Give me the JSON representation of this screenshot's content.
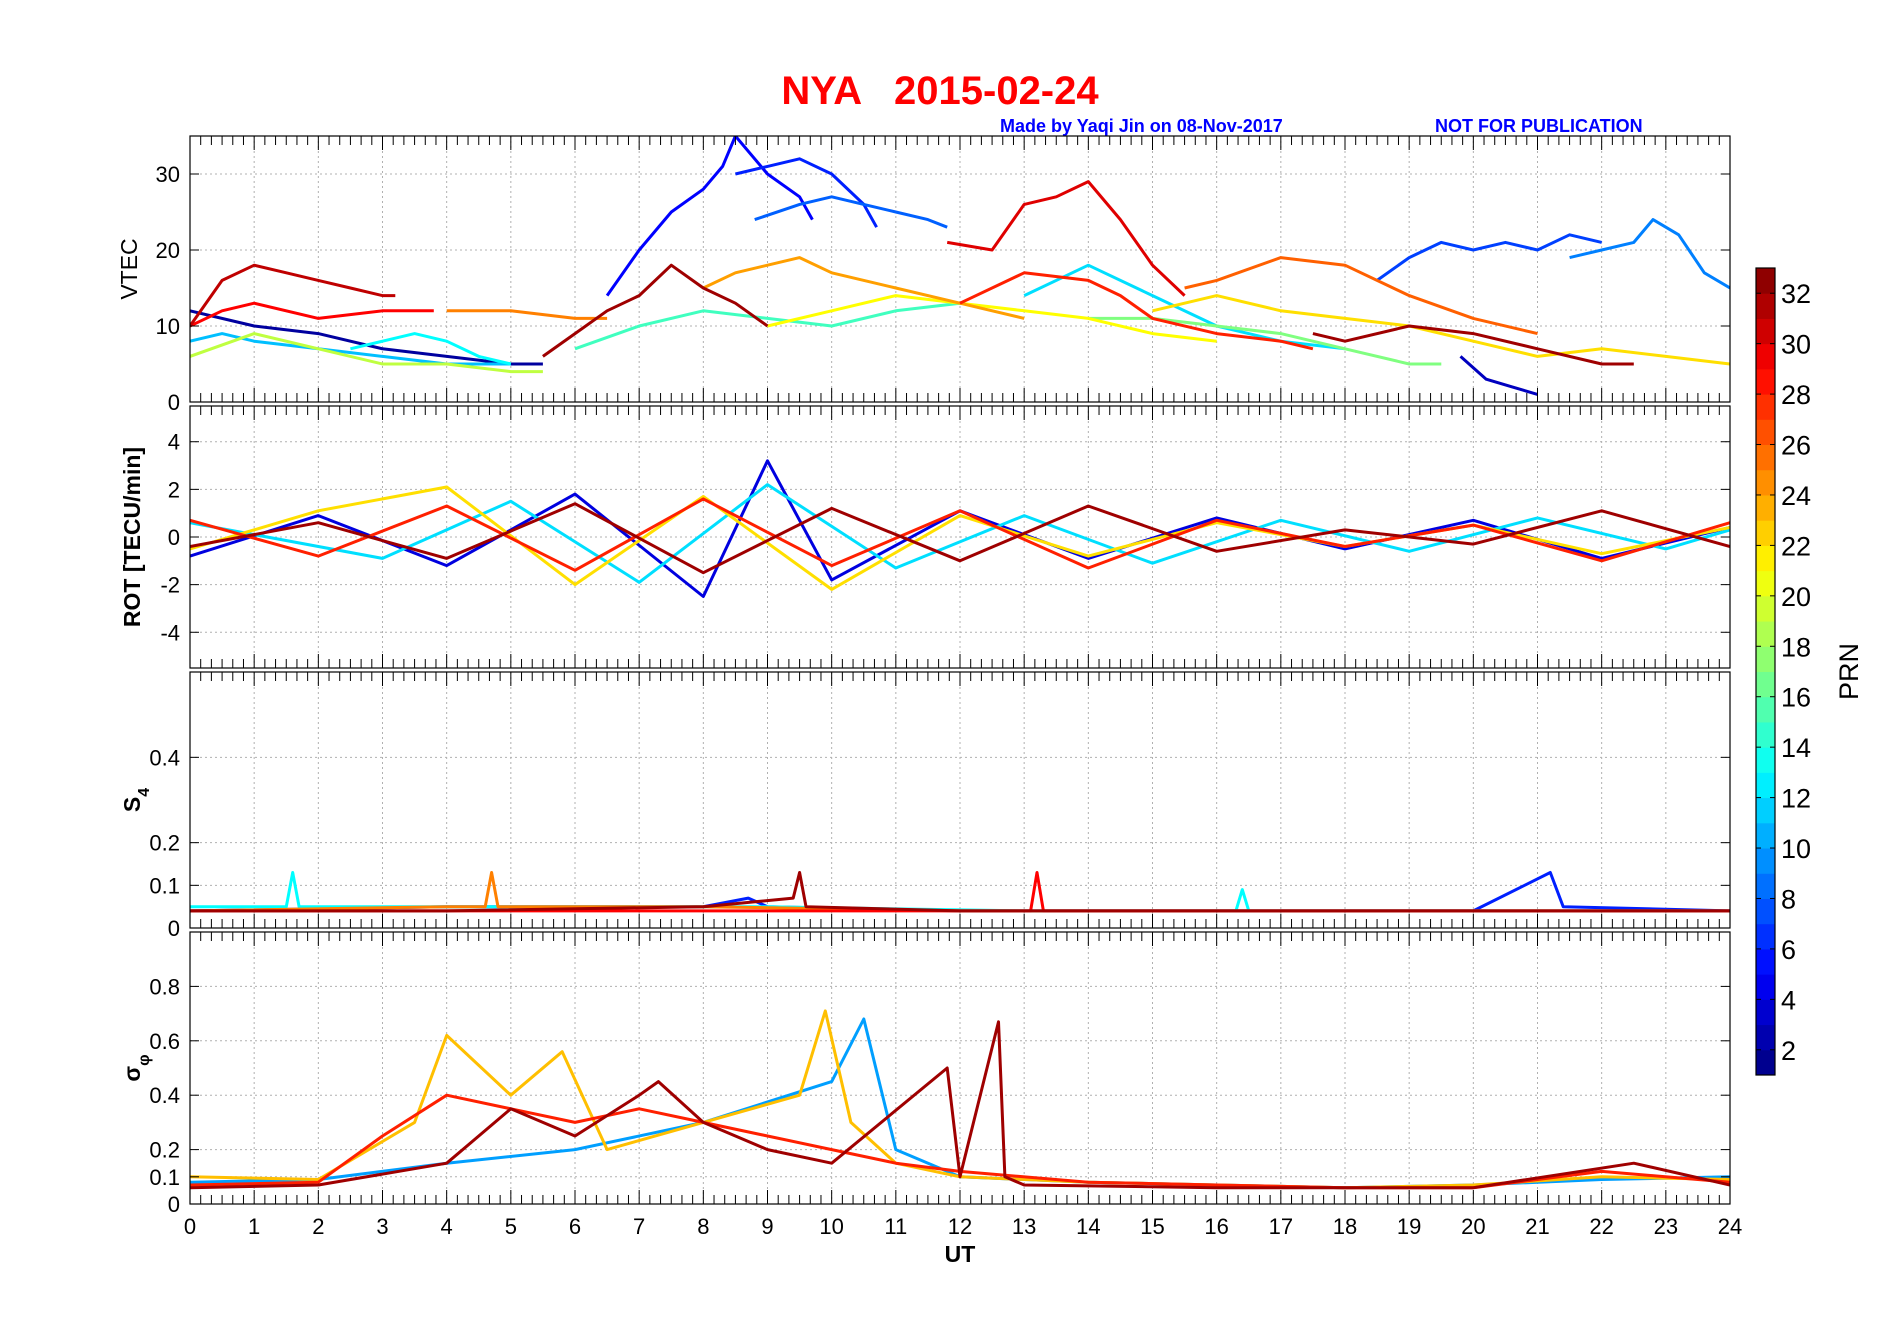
{
  "title": "NYA   2015-02-24",
  "credit_left": "Made by Yaqi Jin on 08-Nov-2017",
  "credit_right": "NOT FOR PUBLICATION",
  "colors": {
    "title": "#ff0000",
    "credit": "#0000ff",
    "grid": "#b0b0b0"
  },
  "chart_data": [
    {
      "type": "line",
      "id": "vtec",
      "ylabel": "VTEC",
      "ylim": [
        0,
        35
      ],
      "yticks": [
        0,
        10,
        20,
        30
      ],
      "grid": true,
      "series": [
        {
          "prn": 2,
          "x": [
            0,
            1,
            2,
            3,
            4,
            5,
            5.5
          ],
          "y": [
            12,
            10,
            9,
            7,
            6,
            5,
            5
          ]
        },
        {
          "prn": 3,
          "x": [
            19.8,
            20.2,
            20.6,
            21.0
          ],
          "y": [
            6,
            3,
            2,
            1
          ]
        },
        {
          "prn": 5,
          "x": [
            6.5,
            7.0,
            7.5,
            8.0,
            8.3,
            8.5,
            9.0,
            9.5,
            9.7
          ],
          "y": [
            14,
            20,
            25,
            28,
            31,
            35,
            30,
            27,
            24
          ]
        },
        {
          "prn": 6,
          "x": [
            8.5,
            9.0,
            9.5,
            10.0,
            10.5,
            10.7
          ],
          "y": [
            30,
            31,
            32,
            30,
            26,
            23
          ]
        },
        {
          "prn": 7,
          "x": [
            18.5,
            19,
            19.5,
            20,
            20.5,
            21,
            21.5,
            22
          ],
          "y": [
            16,
            19,
            21,
            20,
            21,
            20,
            22,
            21
          ]
        },
        {
          "prn": 8,
          "x": [
            8.8,
            9.5,
            10,
            10.5,
            11,
            11.5,
            11.8
          ],
          "y": [
            24,
            26,
            27,
            26,
            25,
            24,
            23
          ]
        },
        {
          "prn": 9,
          "x": [
            21.5,
            22.0,
            22.5,
            22.8,
            23.2,
            23.6,
            24.0
          ],
          "y": [
            19,
            20,
            21,
            24,
            22,
            17,
            15
          ]
        },
        {
          "prn": 11,
          "x": [
            0,
            0.5,
            1,
            2,
            3,
            4,
            5
          ],
          "y": [
            8,
            9,
            8,
            7,
            6,
            5,
            5
          ]
        },
        {
          "prn": 12,
          "x": [
            13,
            14,
            15,
            16,
            17,
            18
          ],
          "y": [
            14,
            18,
            14,
            10,
            8,
            7
          ]
        },
        {
          "prn": 13,
          "x": [
            2.5,
            3,
            3.5,
            4,
            4.5,
            5
          ],
          "y": [
            7,
            8,
            9,
            8,
            6,
            5
          ]
        },
        {
          "prn": 15,
          "x": [
            6,
            7,
            8,
            9,
            10,
            11,
            12
          ],
          "y": [
            7,
            10,
            12,
            11,
            10,
            12,
            13
          ]
        },
        {
          "prn": 17,
          "x": [
            14,
            15,
            16,
            17,
            18,
            19,
            19.5
          ],
          "y": [
            11,
            11,
            10,
            9,
            7,
            5,
            5
          ]
        },
        {
          "prn": 19,
          "x": [
            0,
            1,
            2,
            3,
            4,
            5,
            5.5
          ],
          "y": [
            6,
            9,
            7,
            5,
            5,
            4,
            4
          ]
        },
        {
          "prn": 21,
          "x": [
            9,
            10,
            11,
            12,
            13,
            14,
            15,
            16
          ],
          "y": [
            10,
            12,
            14,
            13,
            12,
            11,
            9,
            8
          ]
        },
        {
          "prn": 22,
          "x": [
            15,
            16,
            17,
            18,
            19,
            20,
            21,
            22,
            23,
            24
          ],
          "y": [
            12,
            14,
            12,
            11,
            10,
            8,
            6,
            7,
            6,
            5
          ]
        },
        {
          "prn": 24,
          "x": [
            8,
            8.5,
            9,
            9.5,
            10,
            11,
            12,
            13
          ],
          "y": [
            15,
            17,
            18,
            19,
            17,
            15,
            13,
            11
          ]
        },
        {
          "prn": 25,
          "x": [
            4,
            5,
            6,
            6.5
          ],
          "y": [
            12,
            12,
            11,
            11
          ]
        },
        {
          "prn": 26,
          "x": [
            15.5,
            16,
            17,
            18,
            19,
            20,
            21
          ],
          "y": [
            15,
            16,
            19,
            18,
            14,
            11,
            9
          ]
        },
        {
          "prn": 28,
          "x": [
            12,
            13,
            14,
            14.5,
            15,
            16,
            17,
            17.5
          ],
          "y": [
            13,
            17,
            16,
            14,
            11,
            9,
            8,
            7
          ]
        },
        {
          "prn": 29,
          "x": [
            0,
            0.5,
            1,
            2,
            3,
            3.8
          ],
          "y": [
            10,
            12,
            13,
            11,
            12,
            12
          ]
        },
        {
          "prn": 30,
          "x": [
            11.8,
            12.5,
            13,
            13.5,
            14,
            14.5,
            15,
            15.5
          ],
          "y": [
            21,
            20,
            26,
            27,
            29,
            24,
            18,
            14
          ]
        },
        {
          "prn": 31,
          "x": [
            0,
            0.5,
            1,
            1.5,
            2,
            2.5,
            3,
            3.2
          ],
          "y": [
            10,
            16,
            18,
            17,
            16,
            15,
            14,
            14
          ]
        },
        {
          "prn": 32,
          "x": [
            5.5,
            6,
            6.5,
            7,
            7.5,
            8,
            8.5,
            9
          ],
          "y": [
            6,
            9,
            12,
            14,
            18,
            15,
            13,
            10
          ]
        },
        {
          "prn": 32,
          "x": [
            17.5,
            18,
            19,
            20,
            21,
            22,
            22.5
          ],
          "y": [
            9,
            8,
            10,
            9,
            7,
            5,
            5
          ]
        }
      ]
    },
    {
      "type": "line",
      "id": "rot",
      "ylabel": "ROT [TECU/min]",
      "ylim": [
        -5.5,
        5.5
      ],
      "yticks": [
        -4,
        -2,
        0,
        2,
        4
      ],
      "grid": true,
      "series": [
        {
          "prn": 4,
          "x": [
            0,
            2,
            4,
            6,
            8,
            9,
            10,
            12,
            14,
            16,
            18,
            20,
            22,
            24
          ],
          "y": [
            -0.8,
            0.9,
            -1.2,
            1.8,
            -2.5,
            3.2,
            -1.8,
            1.1,
            -0.9,
            0.8,
            -0.5,
            0.7,
            -0.9,
            0.4
          ]
        },
        {
          "prn": 12,
          "x": [
            0,
            3,
            5,
            7,
            9,
            11,
            13,
            15,
            17,
            19,
            21,
            23,
            24
          ],
          "y": [
            0.6,
            -0.9,
            1.5,
            -1.9,
            2.2,
            -1.3,
            0.9,
            -1.1,
            0.7,
            -0.6,
            0.8,
            -0.5,
            0.3
          ]
        },
        {
          "prn": 22,
          "x": [
            0,
            2,
            4,
            6,
            8,
            10,
            12,
            14,
            16,
            18,
            20,
            22,
            24
          ],
          "y": [
            -0.5,
            1.1,
            2.1,
            -2.0,
            1.7,
            -2.2,
            0.9,
            -0.8,
            0.6,
            -0.4,
            0.5,
            -0.7,
            0.4
          ]
        },
        {
          "prn": 28,
          "x": [
            0,
            2,
            4,
            6,
            8,
            10,
            12,
            14,
            16,
            18,
            20,
            22,
            24
          ],
          "y": [
            0.7,
            -0.8,
            1.3,
            -1.4,
            1.6,
            -1.2,
            1.1,
            -1.3,
            0.7,
            -0.4,
            0.5,
            -1.0,
            0.6
          ]
        },
        {
          "prn": 32,
          "x": [
            0,
            2,
            4,
            6,
            8,
            10,
            12,
            14,
            16,
            18,
            20,
            22,
            24
          ],
          "y": [
            -0.4,
            0.6,
            -0.9,
            1.4,
            -1.5,
            1.2,
            -1.0,
            1.3,
            -0.6,
            0.3,
            -0.3,
            1.1,
            -0.4
          ]
        }
      ]
    },
    {
      "type": "line",
      "id": "s4",
      "ylabel": "S",
      "ylabel_sub": "4",
      "ylim": [
        0,
        0.6
      ],
      "yticks": [
        0,
        0.1,
        0.2,
        0.4
      ],
      "grid": true,
      "series": [
        {
          "prn": 6,
          "x": [
            0,
            4,
            8,
            8.7,
            9,
            12,
            16,
            20,
            21.2,
            21.4,
            24
          ],
          "y": [
            0.04,
            0.05,
            0.05,
            0.07,
            0.05,
            0.04,
            0.04,
            0.04,
            0.13,
            0.05,
            0.04
          ]
        },
        {
          "prn": 13,
          "x": [
            0,
            1.5,
            1.6,
            1.7,
            5,
            9,
            13,
            16.3,
            16.4,
            16.5,
            20,
            24
          ],
          "y": [
            0.05,
            0.05,
            0.13,
            0.05,
            0.05,
            0.05,
            0.04,
            0.04,
            0.09,
            0.04,
            0.04,
            0.04
          ]
        },
        {
          "prn": 25,
          "x": [
            0,
            4,
            4.6,
            4.7,
            4.8,
            8,
            12,
            16,
            20,
            24
          ],
          "y": [
            0.04,
            0.05,
            0.05,
            0.13,
            0.05,
            0.05,
            0.04,
            0.04,
            0.04,
            0.04
          ]
        },
        {
          "prn": 29,
          "x": [
            0,
            4,
            8,
            13.1,
            13.2,
            13.3,
            16,
            20,
            24
          ],
          "y": [
            0.04,
            0.04,
            0.04,
            0.04,
            0.13,
            0.04,
            0.04,
            0.04,
            0.04
          ]
        },
        {
          "prn": 32,
          "x": [
            0,
            4,
            8,
            9.4,
            9.5,
            9.6,
            12,
            16,
            20,
            24
          ],
          "y": [
            0.04,
            0.04,
            0.05,
            0.07,
            0.13,
            0.05,
            0.04,
            0.04,
            0.04,
            0.04
          ]
        }
      ]
    },
    {
      "type": "line",
      "id": "sigma_phi",
      "ylabel": "σ",
      "ylabel_sub": "φ",
      "xlabel": "UT",
      "xlim": [
        0,
        24
      ],
      "xticks": [
        0,
        1,
        2,
        3,
        4,
        5,
        6,
        7,
        8,
        9,
        10,
        11,
        12,
        13,
        14,
        15,
        16,
        17,
        18,
        19,
        20,
        21,
        22,
        23,
        24
      ],
      "ylim": [
        0,
        1
      ],
      "yticks": [
        0,
        0.1,
        0.2,
        0.4,
        0.6,
        0.8
      ],
      "grid": true,
      "series": [
        {
          "prn": 10,
          "x": [
            0,
            2,
            4,
            6,
            8,
            10,
            10.5,
            11,
            12,
            14,
            16,
            18,
            20,
            22,
            24
          ],
          "y": [
            0.08,
            0.09,
            0.15,
            0.2,
            0.3,
            0.45,
            0.68,
            0.2,
            0.1,
            0.08,
            0.07,
            0.06,
            0.07,
            0.09,
            0.1
          ]
        },
        {
          "prn": 23,
          "x": [
            0,
            2,
            3.5,
            4,
            5,
            5.8,
            6.5,
            8,
            9.5,
            9.9,
            10.3,
            11,
            12,
            14,
            16,
            18,
            20,
            22,
            24
          ],
          "y": [
            0.1,
            0.09,
            0.3,
            0.62,
            0.4,
            0.56,
            0.2,
            0.3,
            0.4,
            0.71,
            0.3,
            0.15,
            0.1,
            0.08,
            0.07,
            0.06,
            0.07,
            0.1,
            0.09
          ]
        },
        {
          "prn": 28,
          "x": [
            0,
            2,
            3,
            4,
            5,
            6,
            7,
            8,
            9,
            10,
            11,
            12,
            14,
            16,
            18,
            20,
            22,
            24
          ],
          "y": [
            0.07,
            0.08,
            0.25,
            0.4,
            0.35,
            0.3,
            0.35,
            0.3,
            0.25,
            0.2,
            0.15,
            0.12,
            0.08,
            0.07,
            0.06,
            0.06,
            0.12,
            0.08
          ]
        },
        {
          "prn": 32,
          "x": [
            0,
            2,
            4,
            5,
            6,
            7,
            7.3,
            8,
            9,
            10,
            11.8,
            12,
            12.6,
            12.7,
            13,
            16,
            20,
            22.5,
            24
          ],
          "y": [
            0.06,
            0.07,
            0.15,
            0.35,
            0.25,
            0.4,
            0.45,
            0.3,
            0.2,
            0.15,
            0.5,
            0.1,
            0.67,
            0.1,
            0.07,
            0.06,
            0.06,
            0.15,
            0.07
          ]
        }
      ]
    }
  ],
  "colorbar": {
    "label": "PRN",
    "range": [
      1,
      33
    ],
    "ticks": [
      2,
      4,
      6,
      8,
      10,
      12,
      14,
      16,
      18,
      20,
      22,
      24,
      26,
      28,
      30,
      32
    ],
    "colormap": "jet"
  }
}
